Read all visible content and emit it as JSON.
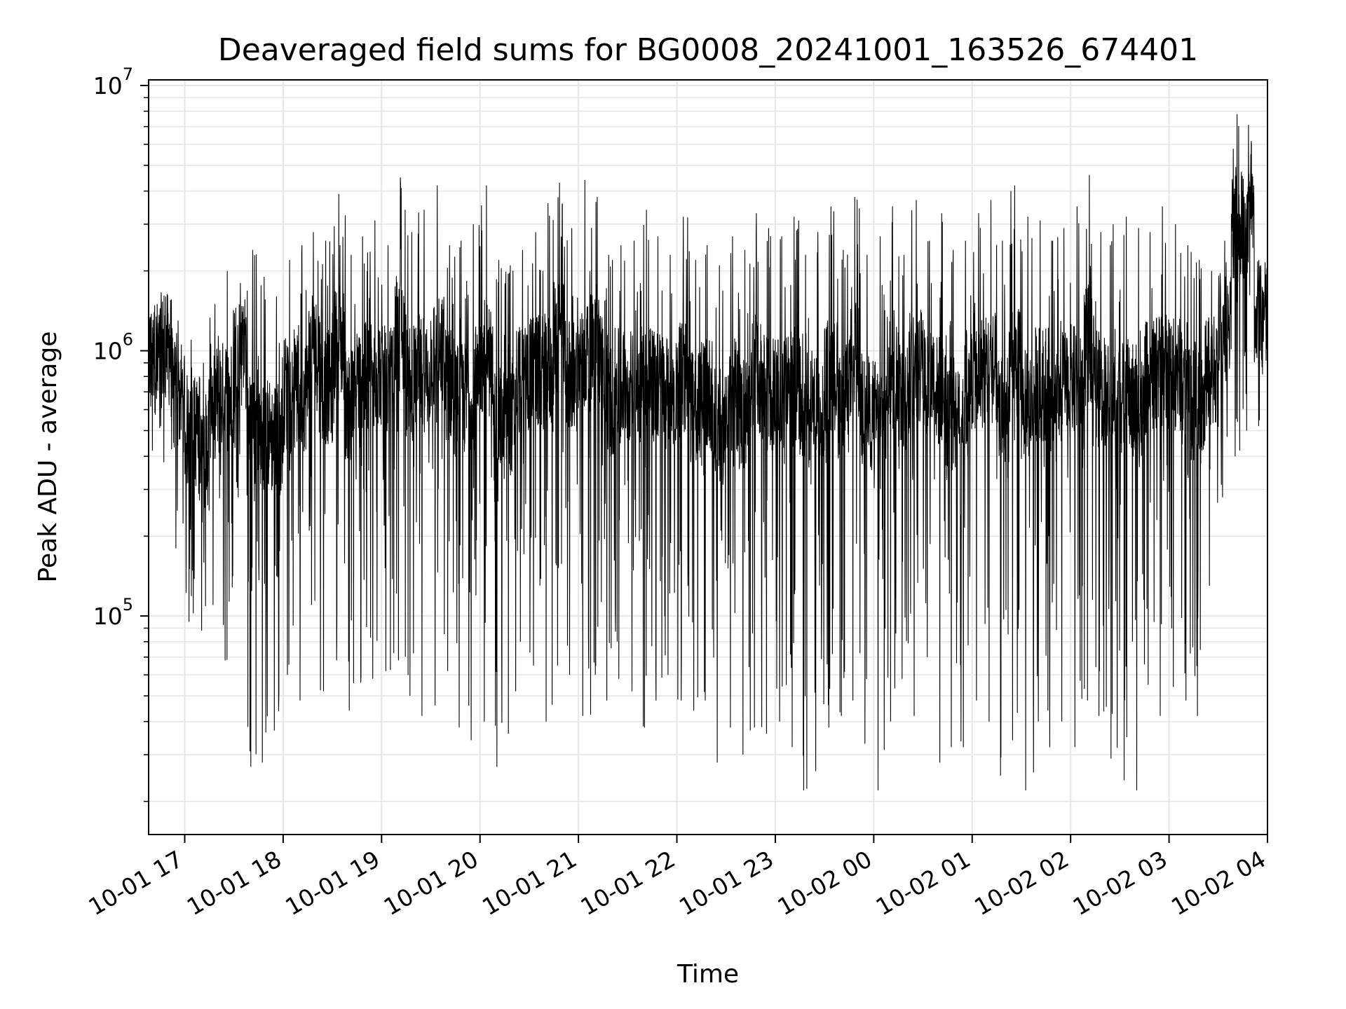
{
  "chart_data": {
    "type": "line",
    "title": "Deaveraged field sums for BG0008_20241001_163526_674401",
    "xlabel": "Time",
    "ylabel": "Peak ADU - average",
    "yscale": "log",
    "ylim": [
      15000,
      10500000
    ],
    "grid": true,
    "grid_minor": true,
    "line_color": "#000000",
    "grid_color": "#e6e6e6",
    "xlim": [
      "2024-10-01 16:38",
      "2024-10-02 04:00"
    ],
    "x_ticks": [
      {
        "value": "2024-10-01 17:00",
        "label": "10-01 17"
      },
      {
        "value": "2024-10-01 18:00",
        "label": "10-01 18"
      },
      {
        "value": "2024-10-01 19:00",
        "label": "10-01 19"
      },
      {
        "value": "2024-10-01 20:00",
        "label": "10-01 20"
      },
      {
        "value": "2024-10-01 21:00",
        "label": "10-01 21"
      },
      {
        "value": "2024-10-01 22:00",
        "label": "10-01 22"
      },
      {
        "value": "2024-10-01 23:00",
        "label": "10-01 23"
      },
      {
        "value": "2024-10-02 00:00",
        "label": "10-02 00"
      },
      {
        "value": "2024-10-02 01:00",
        "label": "10-02 01"
      },
      {
        "value": "2024-10-02 02:00",
        "label": "10-02 02"
      },
      {
        "value": "2024-10-02 03:00",
        "label": "10-02 03"
      },
      {
        "value": "2024-10-02 04:00",
        "label": "10-02 04"
      }
    ],
    "y_ticks": [
      {
        "value": 100000,
        "base": "10",
        "exp": "5"
      },
      {
        "value": 1000000,
        "base": "10",
        "exp": "6"
      },
      {
        "value": 10000000,
        "base": "10",
        "exp": "7"
      }
    ],
    "series": [
      {
        "x": [
          "2024-10-01 16:38",
          "2024-10-01 16:45",
          "2024-10-01 16:52",
          "2024-10-01 17:00",
          "2024-10-01 17:08",
          "2024-10-01 17:15",
          "2024-10-01 17:22",
          "2024-10-01 17:30",
          "2024-10-01 17:38",
          "2024-10-01 17:45",
          "2024-10-01 17:52",
          "2024-10-01 18:00",
          "2024-10-01 18:08",
          "2024-10-01 18:15",
          "2024-10-01 18:22",
          "2024-10-01 18:30",
          "2024-10-01 18:38",
          "2024-10-01 18:45",
          "2024-10-01 18:52",
          "2024-10-01 19:00",
          "2024-10-01 19:08",
          "2024-10-01 19:15",
          "2024-10-01 19:22",
          "2024-10-01 19:30",
          "2024-10-01 19:38",
          "2024-10-01 19:45",
          "2024-10-01 19:52",
          "2024-10-01 20:00",
          "2024-10-01 20:08",
          "2024-10-01 20:15",
          "2024-10-01 20:22",
          "2024-10-01 20:30",
          "2024-10-01 20:38",
          "2024-10-01 20:45",
          "2024-10-01 20:52",
          "2024-10-01 21:00",
          "2024-10-01 21:08",
          "2024-10-01 21:15",
          "2024-10-01 21:22",
          "2024-10-01 21:30",
          "2024-10-01 21:38",
          "2024-10-01 21:45",
          "2024-10-01 21:52",
          "2024-10-01 22:00",
          "2024-10-01 22:08",
          "2024-10-01 22:15",
          "2024-10-01 22:22",
          "2024-10-01 22:30",
          "2024-10-01 22:38",
          "2024-10-01 22:45",
          "2024-10-01 22:52",
          "2024-10-01 23:00",
          "2024-10-01 23:08",
          "2024-10-01 23:15",
          "2024-10-01 23:22",
          "2024-10-01 23:30",
          "2024-10-01 23:38",
          "2024-10-01 23:45",
          "2024-10-01 23:52",
          "2024-10-02 00:00",
          "2024-10-02 00:08",
          "2024-10-02 00:15",
          "2024-10-02 00:22",
          "2024-10-02 00:30",
          "2024-10-02 00:38",
          "2024-10-02 00:45",
          "2024-10-02 00:52",
          "2024-10-02 01:00",
          "2024-10-02 01:08",
          "2024-10-02 01:15",
          "2024-10-02 01:22",
          "2024-10-02 01:30",
          "2024-10-02 01:38",
          "2024-10-02 01:45",
          "2024-10-02 01:52",
          "2024-10-02 02:00",
          "2024-10-02 02:08",
          "2024-10-02 02:15",
          "2024-10-02 02:22",
          "2024-10-02 02:30",
          "2024-10-02 02:38",
          "2024-10-02 02:45",
          "2024-10-02 02:52",
          "2024-10-02 03:00",
          "2024-10-02 03:08",
          "2024-10-02 03:15",
          "2024-10-02 03:22",
          "2024-10-02 03:30",
          "2024-10-02 03:38",
          "2024-10-02 03:45",
          "2024-10-02 03:52",
          "2024-10-02 04:00"
        ],
        "max": [
          1400000,
          1600000,
          1300000,
          1100000,
          900000,
          1500000,
          2000000,
          1800000,
          2400000,
          1900000,
          1600000,
          2200000,
          2500000,
          2800000,
          2600000,
          3900000,
          2300000,
          2700000,
          3100000,
          2500000,
          4500000,
          2800000,
          3400000,
          4200000,
          2500000,
          2600000,
          3000000,
          4200000,
          2200000,
          2100000,
          2400000,
          2800000,
          3600000,
          4300000,
          2900000,
          4400000,
          3800000,
          2300000,
          2500000,
          2600000,
          3400000,
          2700000,
          2300000,
          3200000,
          2200000,
          2500000,
          2100000,
          2700000,
          2400000,
          3300000,
          2900000,
          2700000,
          3200000,
          2300000,
          2800000,
          3500000,
          2400000,
          3800000,
          2300000,
          2700000,
          3500000,
          2300000,
          3700000,
          2600000,
          3300000,
          2400000,
          2600000,
          3300000,
          3700000,
          2600000,
          4200000,
          3200000,
          3100000,
          2600000,
          2900000,
          3500000,
          4600000,
          2800000,
          3000000,
          3200000,
          2900000,
          2800000,
          3500000,
          3000000,
          2500000,
          2200000,
          2000000,
          2600000,
          7800000,
          7100000,
          2100000,
          1900000
        ],
        "min": [
          420000,
          380000,
          180000,
          95000,
          88000,
          110000,
          68000,
          280000,
          27000,
          28000,
          37000,
          60000,
          48000,
          110000,
          52000,
          68000,
          44000,
          56000,
          58000,
          62000,
          68000,
          50000,
          42000,
          46000,
          62000,
          38000,
          34000,
          40000,
          27000,
          36000,
          80000,
          65000,
          40000,
          65000,
          60000,
          42000,
          60000,
          48000,
          58000,
          52000,
          38000,
          48000,
          60000,
          48000,
          44000,
          48000,
          28000,
          38000,
          30000,
          38000,
          36000,
          40000,
          32000,
          22000,
          26000,
          38000,
          42000,
          48000,
          33000,
          22000,
          40000,
          58000,
          42000,
          70000,
          28000,
          32000,
          32000,
          48000,
          40000,
          25000,
          34000,
          22000,
          40000,
          32000,
          40000,
          32000,
          48000,
          42000,
          29000,
          24000,
          22000,
          55000,
          42000,
          54000,
          48000,
          42000,
          130000,
          280000,
          400000,
          500000,
          520000,
          560000
        ]
      }
    ]
  }
}
